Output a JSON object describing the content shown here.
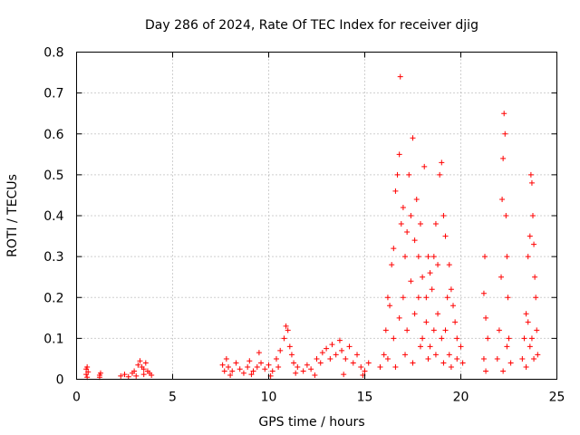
{
  "chart_data": {
    "type": "scatter",
    "title": "Day 286 of 2024, Rate Of TEC Index for receiver djig",
    "xlabel": "GPS time / hours",
    "ylabel": "ROTI / TECUs",
    "xlim": [
      0,
      25
    ],
    "ylim": [
      0,
      0.8
    ],
    "x_ticks": [
      0,
      5,
      10,
      15,
      20,
      25
    ],
    "y_ticks": [
      0,
      0.1,
      0.2,
      0.3,
      0.4,
      0.5,
      0.6,
      0.7,
      0.8
    ],
    "x_tick_labels": [
      "0",
      "5",
      "10",
      "15",
      "20",
      "25"
    ],
    "y_tick_labels": [
      "0",
      "0.1",
      "0.2",
      "0.3",
      "0.4",
      "0.5",
      "0.6",
      "0.7",
      "0.8"
    ],
    "grid": true,
    "marker": "+",
    "color": "#ff0000",
    "series": [
      {
        "name": "ROTI",
        "points": [
          [
            0.5,
            0.025
          ],
          [
            0.5,
            0.012
          ],
          [
            0.55,
            0.005
          ],
          [
            0.6,
            0.018
          ],
          [
            0.55,
            0.03
          ],
          [
            1.2,
            0.01
          ],
          [
            1.2,
            0.005
          ],
          [
            1.25,
            0.015
          ],
          [
            2.3,
            0.008
          ],
          [
            2.5,
            0.012
          ],
          [
            2.7,
            0.006
          ],
          [
            2.9,
            0.015
          ],
          [
            3.0,
            0.02
          ],
          [
            3.2,
            0.035
          ],
          [
            3.3,
            0.045
          ],
          [
            3.4,
            0.03
          ],
          [
            3.5,
            0.025
          ],
          [
            3.6,
            0.04
          ],
          [
            3.7,
            0.02
          ],
          [
            3.8,
            0.015
          ],
          [
            3.9,
            0.01
          ],
          [
            3.1,
            0.008
          ],
          [
            3.5,
            0.012
          ],
          [
            7.6,
            0.035
          ],
          [
            7.7,
            0.02
          ],
          [
            7.8,
            0.05
          ],
          [
            7.9,
            0.03
          ],
          [
            8.1,
            0.02
          ],
          [
            8.3,
            0.04
          ],
          [
            8.5,
            0.025
          ],
          [
            8.7,
            0.015
          ],
          [
            8.9,
            0.03
          ],
          [
            9.0,
            0.045
          ],
          [
            9.2,
            0.02
          ],
          [
            9.4,
            0.03
          ],
          [
            9.5,
            0.065
          ],
          [
            9.6,
            0.04
          ],
          [
            9.8,
            0.025
          ],
          [
            10.0,
            0.035
          ],
          [
            10.2,
            0.02
          ],
          [
            10.4,
            0.05
          ],
          [
            10.5,
            0.03
          ],
          [
            10.6,
            0.07
          ],
          [
            10.8,
            0.1
          ],
          [
            10.9,
            0.13
          ],
          [
            11.0,
            0.12
          ],
          [
            11.1,
            0.08
          ],
          [
            11.2,
            0.06
          ],
          [
            11.3,
            0.04
          ],
          [
            11.5,
            0.03
          ],
          [
            11.8,
            0.02
          ],
          [
            12.0,
            0.035
          ],
          [
            12.2,
            0.025
          ],
          [
            12.5,
            0.05
          ],
          [
            12.7,
            0.04
          ],
          [
            12.8,
            0.065
          ],
          [
            13.0,
            0.075
          ],
          [
            13.2,
            0.05
          ],
          [
            13.3,
            0.085
          ],
          [
            13.5,
            0.06
          ],
          [
            13.7,
            0.095
          ],
          [
            13.8,
            0.07
          ],
          [
            14.0,
            0.05
          ],
          [
            14.2,
            0.08
          ],
          [
            14.4,
            0.04
          ],
          [
            14.6,
            0.06
          ],
          [
            14.8,
            0.03
          ],
          [
            15.0,
            0.02
          ],
          [
            15.2,
            0.04
          ],
          [
            8.0,
            0.01
          ],
          [
            9.1,
            0.012
          ],
          [
            10.1,
            0.008
          ],
          [
            11.4,
            0.015
          ],
          [
            12.4,
            0.01
          ],
          [
            13.9,
            0.012
          ],
          [
            14.9,
            0.01
          ],
          [
            15.8,
            0.03
          ],
          [
            16.0,
            0.06
          ],
          [
            16.1,
            0.12
          ],
          [
            16.2,
            0.2
          ],
          [
            16.3,
            0.18
          ],
          [
            16.4,
            0.28
          ],
          [
            16.5,
            0.32
          ],
          [
            16.6,
            0.46
          ],
          [
            16.7,
            0.5
          ],
          [
            16.8,
            0.55
          ],
          [
            16.85,
            0.74
          ],
          [
            16.9,
            0.38
          ],
          [
            17.0,
            0.42
          ],
          [
            17.1,
            0.3
          ],
          [
            17.2,
            0.36
          ],
          [
            17.3,
            0.5
          ],
          [
            17.4,
            0.4
          ],
          [
            17.5,
            0.59
          ],
          [
            17.6,
            0.34
          ],
          [
            17.7,
            0.44
          ],
          [
            17.8,
            0.3
          ],
          [
            17.9,
            0.38
          ],
          [
            18.0,
            0.25
          ],
          [
            18.1,
            0.52
          ],
          [
            18.2,
            0.2
          ],
          [
            18.3,
            0.3
          ],
          [
            18.4,
            0.26
          ],
          [
            18.5,
            0.22
          ],
          [
            18.6,
            0.3
          ],
          [
            18.7,
            0.38
          ],
          [
            18.8,
            0.28
          ],
          [
            18.9,
            0.5
          ],
          [
            19.0,
            0.53
          ],
          [
            19.1,
            0.4
          ],
          [
            19.2,
            0.35
          ],
          [
            19.3,
            0.2
          ],
          [
            19.4,
            0.28
          ],
          [
            19.5,
            0.22
          ],
          [
            19.6,
            0.18
          ],
          [
            19.7,
            0.14
          ],
          [
            19.8,
            0.1
          ],
          [
            20.0,
            0.08
          ],
          [
            20.1,
            0.04
          ],
          [
            16.5,
            0.1
          ],
          [
            16.8,
            0.15
          ],
          [
            17.0,
            0.2
          ],
          [
            17.2,
            0.12
          ],
          [
            17.4,
            0.24
          ],
          [
            17.6,
            0.16
          ],
          [
            17.8,
            0.2
          ],
          [
            18.0,
            0.1
          ],
          [
            18.2,
            0.14
          ],
          [
            18.4,
            0.08
          ],
          [
            18.6,
            0.12
          ],
          [
            18.8,
            0.16
          ],
          [
            19.0,
            0.1
          ],
          [
            19.2,
            0.12
          ],
          [
            19.4,
            0.06
          ],
          [
            16.2,
            0.05
          ],
          [
            16.6,
            0.03
          ],
          [
            17.1,
            0.06
          ],
          [
            17.5,
            0.04
          ],
          [
            17.9,
            0.08
          ],
          [
            18.3,
            0.05
          ],
          [
            18.7,
            0.06
          ],
          [
            19.1,
            0.04
          ],
          [
            19.5,
            0.03
          ],
          [
            19.8,
            0.05
          ],
          [
            21.2,
            0.21
          ],
          [
            21.25,
            0.3
          ],
          [
            21.3,
            0.15
          ],
          [
            21.4,
            0.1
          ],
          [
            21.2,
            0.05
          ],
          [
            21.3,
            0.02
          ],
          [
            21.9,
            0.05
          ],
          [
            22.0,
            0.12
          ],
          [
            22.1,
            0.25
          ],
          [
            22.15,
            0.44
          ],
          [
            22.2,
            0.54
          ],
          [
            22.25,
            0.65
          ],
          [
            22.3,
            0.6
          ],
          [
            22.35,
            0.4
          ],
          [
            22.4,
            0.3
          ],
          [
            22.45,
            0.2
          ],
          [
            22.5,
            0.1
          ],
          [
            22.6,
            0.04
          ],
          [
            22.2,
            0.02
          ],
          [
            22.4,
            0.08
          ],
          [
            23.2,
            0.05
          ],
          [
            23.3,
            0.1
          ],
          [
            23.4,
            0.16
          ],
          [
            23.5,
            0.3
          ],
          [
            23.6,
            0.35
          ],
          [
            23.65,
            0.5
          ],
          [
            23.7,
            0.48
          ],
          [
            23.75,
            0.4
          ],
          [
            23.8,
            0.33
          ],
          [
            23.85,
            0.25
          ],
          [
            23.9,
            0.2
          ],
          [
            23.95,
            0.12
          ],
          [
            24.0,
            0.06
          ],
          [
            23.4,
            0.03
          ],
          [
            23.6,
            0.08
          ],
          [
            23.8,
            0.05
          ],
          [
            23.5,
            0.14
          ],
          [
            23.7,
            0.1
          ]
        ]
      }
    ]
  }
}
